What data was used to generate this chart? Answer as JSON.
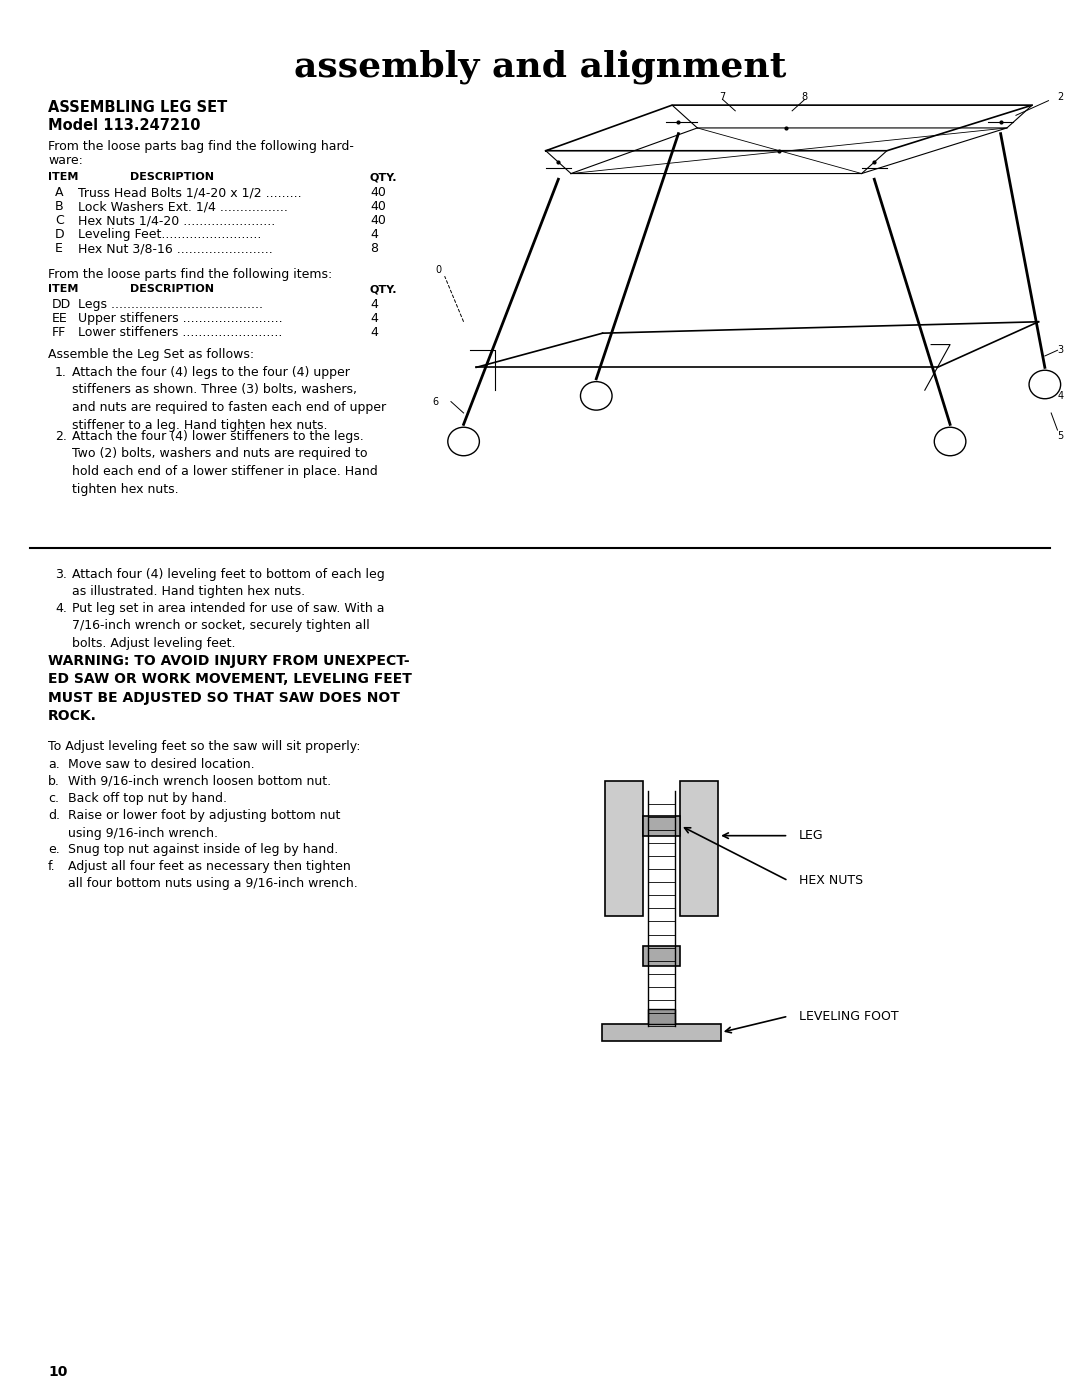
{
  "title": "assembly and alignment",
  "bg_color": "#ffffff",
  "text_color": "#000000",
  "page_number": "10"
}
